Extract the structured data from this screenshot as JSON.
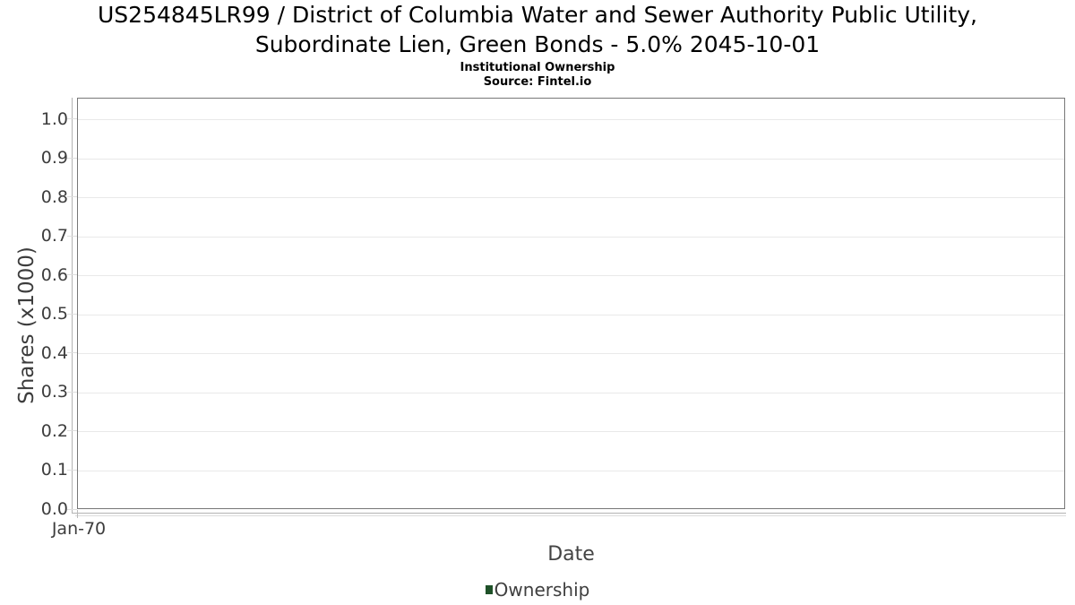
{
  "header": {
    "title_lines": [
      "US254845LR99 / District of Columbia Water and Sewer Authority Public Utility,",
      "Subordinate Lien, Green Bonds - 5.0% 2045-10-01"
    ],
    "subtitle": "Institutional Ownership",
    "source": "Source: Fintel.io"
  },
  "chart_data": {
    "type": "line",
    "title": "US254845LR99 / District of Columbia Water and Sewer Authority Public Utility, Subordinate Lien, Green Bonds - 5.0% 2045-10-01",
    "subtitle": "Institutional Ownership",
    "source": "Source: Fintel.io",
    "xlabel": "Date",
    "ylabel": "Shares (x1000)",
    "x_tick_labels": [
      "Jan-70"
    ],
    "y_tick_labels": [
      "0.0",
      "0.1",
      "0.2",
      "0.3",
      "0.4",
      "0.5",
      "0.6",
      "0.7",
      "0.8",
      "0.9",
      "1.0"
    ],
    "ylim": [
      0.0,
      1.05
    ],
    "grid": true,
    "legend_position": "bottom",
    "legend": {
      "entries": [
        {
          "label": "Ownership",
          "color": "#1e5128",
          "marker": "square"
        }
      ]
    },
    "series": [
      {
        "name": "Ownership",
        "color": "#1e5128",
        "x": [],
        "y": []
      }
    ]
  },
  "colors": {
    "background": "#ffffff",
    "plot_border": "#777777",
    "axis_line": "#b3b3b3",
    "gridline": "#e9e9e9",
    "tick": "#dedede",
    "title_text": "#000000",
    "tick_text": "#3d3d3d",
    "axis_title_text": "#444444",
    "legend_green": "#1e5128"
  }
}
